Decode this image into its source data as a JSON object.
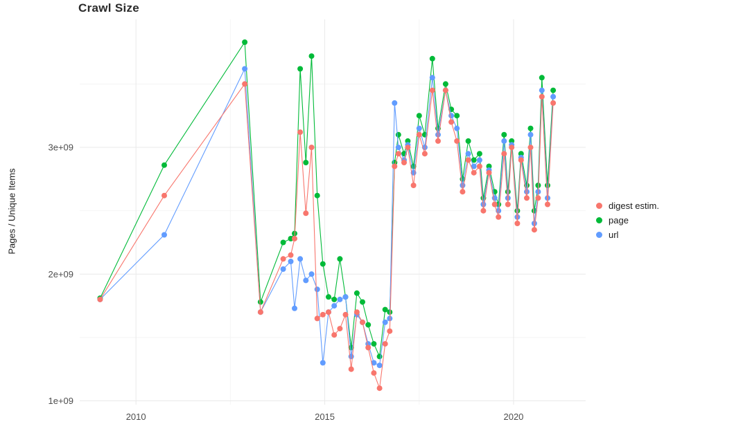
{
  "title": "Crawl Size",
  "axes": {
    "y_label": "Pages / Unique Items"
  },
  "legend": {
    "items": [
      {
        "label": "digest estim.",
        "color": "#F8766D"
      },
      {
        "label": "page",
        "color": "#00BA38"
      },
      {
        "label": "url",
        "color": "#619CFF"
      }
    ]
  },
  "chart_data": {
    "type": "line",
    "title": "Crawl Size",
    "xlabel": "",
    "ylabel": "Pages / Unique Items",
    "x_unit": "year (decimal)",
    "y_unit": "pages / unique items, in billions (1e9)",
    "xlim": [
      2008.51,
      2021.91
    ],
    "ylim_billions": [
      0.97,
      4.01
    ],
    "grid": true,
    "legend_position": "right",
    "x_ticks": [
      {
        "value": 2010,
        "label": "2010"
      },
      {
        "value": 2015,
        "label": "2015"
      },
      {
        "value": 2020,
        "label": "2020"
      }
    ],
    "y_ticks": [
      {
        "value": 1,
        "label": "1e+09"
      },
      {
        "value": 2,
        "label": "2e+09"
      },
      {
        "value": 3,
        "label": "3e+09"
      }
    ],
    "x_minor": [
      2012.5,
      2017.5
    ],
    "y_minor": [
      1.5,
      2.5,
      3.5
    ],
    "x": [
      2009.05,
      2010.75,
      2012.88,
      2013.3,
      2013.9,
      2014.1,
      2014.2,
      2014.35,
      2014.5,
      2014.65,
      2014.8,
      2014.95,
      2015.1,
      2015.25,
      2015.4,
      2015.55,
      2015.7,
      2015.85,
      2016.0,
      2016.15,
      2016.3,
      2016.45,
      2016.6,
      2016.72,
      2016.85,
      2016.95,
      2017.1,
      2017.2,
      2017.35,
      2017.5,
      2017.65,
      2017.85,
      2018.0,
      2018.2,
      2018.35,
      2018.5,
      2018.65,
      2018.8,
      2018.95,
      2019.1,
      2019.2,
      2019.35,
      2019.5,
      2019.6,
      2019.75,
      2019.85,
      2019.95,
      2020.1,
      2020.2,
      2020.35,
      2020.45,
      2020.55,
      2020.65,
      2020.75,
      2020.9,
      2021.05
    ],
    "series": [
      {
        "name": "digest estim.",
        "color": "#F8766D",
        "values_billions": [
          1.8,
          2.62,
          3.5,
          1.7,
          2.12,
          2.15,
          2.28,
          3.12,
          2.48,
          3.0,
          1.65,
          1.68,
          1.7,
          1.52,
          1.57,
          1.68,
          1.25,
          1.7,
          1.62,
          1.42,
          1.22,
          1.1,
          1.45,
          1.55,
          2.85,
          2.95,
          2.88,
          3.0,
          2.7,
          3.1,
          2.95,
          3.45,
          3.05,
          3.45,
          3.2,
          3.05,
          2.65,
          2.9,
          2.8,
          2.85,
          2.5,
          2.8,
          2.55,
          2.45,
          2.95,
          2.55,
          3.0,
          2.4,
          2.9,
          2.6,
          3.0,
          2.35,
          2.6,
          3.4,
          2.55,
          3.35
        ]
      },
      {
        "name": "page",
        "color": "#00BA38",
        "values_billions": [
          1.81,
          2.86,
          3.83,
          1.78,
          2.25,
          2.28,
          2.32,
          3.62,
          2.88,
          3.72,
          2.62,
          2.08,
          1.82,
          1.8,
          2.12,
          1.82,
          1.42,
          1.85,
          1.78,
          1.6,
          1.45,
          1.35,
          1.72,
          1.7,
          2.88,
          3.1,
          2.95,
          3.05,
          2.85,
          3.25,
          3.1,
          3.7,
          3.15,
          3.5,
          3.3,
          3.25,
          2.75,
          3.05,
          2.9,
          2.95,
          2.6,
          2.85,
          2.65,
          2.55,
          3.1,
          2.65,
          3.05,
          2.5,
          2.95,
          2.7,
          3.15,
          2.5,
          2.7,
          3.55,
          2.7,
          3.45
        ]
      },
      {
        "name": "url",
        "color": "#619CFF",
        "values_billions": [
          1.8,
          2.31,
          3.62,
          1.7,
          2.04,
          2.1,
          1.73,
          2.12,
          1.95,
          2.0,
          1.88,
          1.3,
          1.7,
          1.75,
          1.8,
          1.82,
          1.35,
          1.68,
          1.62,
          1.45,
          1.3,
          1.28,
          1.62,
          1.65,
          3.35,
          3.0,
          2.9,
          3.02,
          2.8,
          3.15,
          3.0,
          3.55,
          3.1,
          3.45,
          3.25,
          3.15,
          2.7,
          2.95,
          2.85,
          2.9,
          2.55,
          2.82,
          2.6,
          2.5,
          3.05,
          2.6,
          3.02,
          2.45,
          2.92,
          2.65,
          3.1,
          2.4,
          2.65,
          3.45,
          2.6,
          3.4
        ]
      }
    ]
  }
}
